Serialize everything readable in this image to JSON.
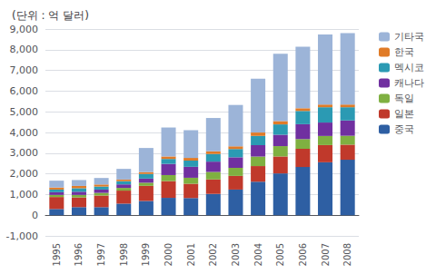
{
  "chart_data": {
    "type": "bar",
    "title": "(단위 : 억 달러)",
    "stacked": true,
    "grid": true,
    "legend": "right",
    "categories": [
      "1995",
      "1996",
      "1997",
      "1998",
      "1999",
      "2000",
      "2001",
      "2002",
      "2003",
      "2004",
      "2005",
      "2006",
      "2007",
      "2008"
    ],
    "series": [
      {
        "name": "중국",
        "color": "#2e5fa3",
        "values": [
          300,
          390,
          390,
          560,
          690,
          840,
          830,
          1030,
          1240,
          1620,
          2020,
          2330,
          2560,
          2680
        ]
      },
      {
        "name": "일본",
        "color": "#c0392b",
        "values": [
          580,
          470,
          560,
          630,
          730,
          810,
          690,
          700,
          660,
          755,
          820,
          880,
          830,
          730
        ]
      },
      {
        "name": "독일",
        "color": "#7fb041",
        "values": [
          100,
          120,
          130,
          130,
          150,
          290,
          290,
          360,
          390,
          460,
          500,
          470,
          440,
          430
        ]
      },
      {
        "name": "캐나다",
        "color": "#7030a0",
        "values": [
          130,
          155,
          160,
          170,
          200,
          540,
          530,
          500,
          510,
          550,
          550,
          720,
          650,
          740
        ]
      },
      {
        "name": "멕시코",
        "color": "#2b9ab3",
        "values": [
          130,
          170,
          145,
          155,
          225,
          240,
          300,
          370,
          400,
          450,
          500,
          640,
          740,
          640
        ]
      },
      {
        "name": "한국",
        "color": "#e07b27",
        "values": [
          100,
          110,
          100,
          80,
          90,
          120,
          130,
          130,
          130,
          160,
          160,
          130,
          130,
          130
        ]
      },
      {
        "name": "기타국",
        "color": "#9cb4d8",
        "values": [
          330,
          285,
          315,
          515,
          1165,
          1400,
          1340,
          1610,
          2000,
          2605,
          3250,
          2980,
          3390,
          3450
        ]
      }
    ],
    "legend_order": [
      "기타국",
      "한국",
      "멕시코",
      "캐나다",
      "독일",
      "일본",
      "중국"
    ],
    "ylim": [
      -1000,
      9000
    ],
    "yticks": [
      -1000,
      0,
      1000,
      2000,
      3000,
      4000,
      5000,
      6000,
      7000,
      8000,
      9000
    ]
  }
}
